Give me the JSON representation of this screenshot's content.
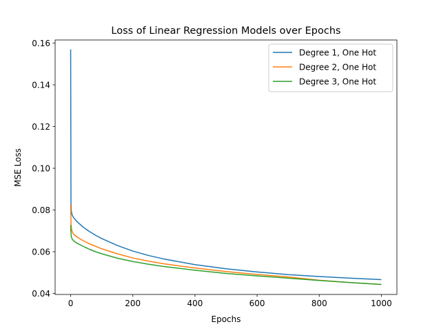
{
  "chart_data": {
    "type": "line",
    "title": "Loss of Linear Regression Models over Epochs",
    "xlabel": "Epochs",
    "ylabel": "MSE Loss",
    "xlim": [
      -50,
      1050
    ],
    "ylim": [
      0.0395,
      0.1615
    ],
    "xticks": [
      0,
      200,
      400,
      600,
      800,
      1000
    ],
    "yticks": [
      0.04,
      0.06,
      0.08,
      0.1,
      0.12,
      0.14,
      0.16
    ],
    "ytick_labels": [
      "0.04",
      "0.06",
      "0.08",
      "0.10",
      "0.12",
      "0.14",
      "0.16"
    ],
    "grid": false,
    "legend_position": "top-right",
    "series": [
      {
        "name": "Degree 1, One Hot",
        "color": "#1f77b4",
        "points": [
          [
            0,
            0.157
          ],
          [
            1,
            0.0835
          ],
          [
            2,
            0.0795
          ],
          [
            5,
            0.0775
          ],
          [
            10,
            0.0762
          ],
          [
            20,
            0.0745
          ],
          [
            40,
            0.0718
          ],
          [
            60,
            0.0697
          ],
          [
            80,
            0.0679
          ],
          [
            100,
            0.0663
          ],
          [
            150,
            0.063
          ],
          [
            200,
            0.0603
          ],
          [
            250,
            0.0582
          ],
          [
            300,
            0.0565
          ],
          [
            400,
            0.0538
          ],
          [
            500,
            0.0518
          ],
          [
            600,
            0.0503
          ],
          [
            700,
            0.049
          ],
          [
            800,
            0.0481
          ],
          [
            900,
            0.0473
          ],
          [
            1000,
            0.0466
          ]
        ]
      },
      {
        "name": "Degree 2, One Hot",
        "color": "#ff7f0e",
        "points": [
          [
            0,
            0.0828
          ],
          [
            1,
            0.0745
          ],
          [
            2,
            0.0715
          ],
          [
            5,
            0.0695
          ],
          [
            10,
            0.0683
          ],
          [
            20,
            0.0671
          ],
          [
            40,
            0.0653
          ],
          [
            60,
            0.0638
          ],
          [
            80,
            0.0626
          ],
          [
            100,
            0.0614
          ],
          [
            150,
            0.059
          ],
          [
            200,
            0.057
          ],
          [
            250,
            0.0555
          ],
          [
            300,
            0.0542
          ],
          [
            400,
            0.0522
          ],
          [
            500,
            0.0505
          ],
          [
            600,
            0.0491
          ],
          [
            700,
            0.0479
          ],
          [
            800,
            0.0463
          ],
          [
            900,
            0.0452
          ],
          [
            1000,
            0.0443
          ]
        ]
      },
      {
        "name": "Degree 3, One Hot",
        "color": "#2ca02c",
        "points": [
          [
            0,
            0.0728
          ],
          [
            1,
            0.069
          ],
          [
            2,
            0.0672
          ],
          [
            5,
            0.066
          ],
          [
            10,
            0.0652
          ],
          [
            20,
            0.0641
          ],
          [
            40,
            0.0626
          ],
          [
            60,
            0.0612
          ],
          [
            80,
            0.06
          ],
          [
            100,
            0.059
          ],
          [
            150,
            0.0569
          ],
          [
            200,
            0.0553
          ],
          [
            250,
            0.054
          ],
          [
            300,
            0.0529
          ],
          [
            400,
            0.0511
          ],
          [
            500,
            0.0496
          ],
          [
            600,
            0.0484
          ],
          [
            700,
            0.0473
          ],
          [
            800,
            0.0462
          ],
          [
            900,
            0.0452
          ],
          [
            1000,
            0.0443
          ]
        ]
      }
    ]
  }
}
